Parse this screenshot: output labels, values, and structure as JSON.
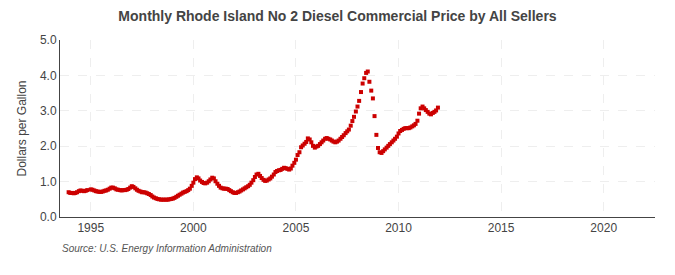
{
  "chart_data": {
    "type": "scatter",
    "title": "Monthly Rhode Island No 2 Diesel Commercial Price by All Sellers",
    "ylabel": "Dollars per Gallon",
    "annotations": [
      "Source: U.S. Energy Information Administration"
    ],
    "color": "#cc0000",
    "marker": "square",
    "grid": true,
    "xlim": [
      1993.5,
      2022.5
    ],
    "xticks": [
      1995,
      2000,
      2005,
      2010,
      2015,
      2020
    ],
    "ylim": [
      0.0,
      5.0
    ],
    "yticks": [
      {
        "value": 0.0,
        "label": "0.0"
      },
      {
        "value": 1.0,
        "label": "1.0"
      },
      {
        "value": 2.0,
        "label": "2.0"
      },
      {
        "value": 3.0,
        "label": "3.0"
      },
      {
        "value": 4.0,
        "label": "4.0"
      },
      {
        "value": 5.0,
        "label": "5.0"
      }
    ],
    "x": [
      1993.92,
      1994.0,
      1994.08,
      1994.17,
      1994.25,
      1994.33,
      1994.42,
      1994.5,
      1994.58,
      1994.67,
      1994.75,
      1994.83,
      1995.0,
      1995.08,
      1995.17,
      1995.25,
      1995.33,
      1995.42,
      1995.5,
      1995.58,
      1995.67,
      1995.75,
      1995.83,
      1995.92,
      1996.0,
      1996.08,
      1996.17,
      1996.25,
      1996.33,
      1996.42,
      1996.5,
      1996.58,
      1996.67,
      1996.75,
      1996.83,
      1996.92,
      1997.0,
      1997.08,
      1997.17,
      1997.25,
      1997.33,
      1997.42,
      1997.5,
      1997.58,
      1997.67,
      1997.75,
      1997.83,
      1997.92,
      1998.0,
      1998.08,
      1998.17,
      1998.25,
      1998.33,
      1998.42,
      1998.5,
      1998.58,
      1998.67,
      1998.75,
      1998.83,
      1998.92,
      1999.0,
      1999.08,
      1999.17,
      1999.25,
      1999.33,
      1999.42,
      1999.5,
      1999.58,
      1999.67,
      1999.75,
      1999.83,
      1999.92,
      2000.0,
      2000.08,
      2000.17,
      2000.25,
      2000.33,
      2000.42,
      2000.5,
      2000.58,
      2000.67,
      2000.75,
      2000.83,
      2000.92,
      2001.0,
      2001.08,
      2001.17,
      2001.25,
      2001.33,
      2001.42,
      2001.5,
      2001.58,
      2001.67,
      2001.75,
      2001.83,
      2001.92,
      2002.0,
      2002.08,
      2002.17,
      2002.25,
      2002.33,
      2002.42,
      2002.5,
      2002.58,
      2002.67,
      2002.75,
      2002.83,
      2002.92,
      2003.0,
      2003.08,
      2003.17,
      2003.25,
      2003.33,
      2003.42,
      2003.5,
      2003.58,
      2003.67,
      2003.75,
      2003.83,
      2003.92,
      2004.0,
      2004.08,
      2004.17,
      2004.25,
      2004.33,
      2004.42,
      2004.5,
      2004.58,
      2004.67,
      2004.75,
      2004.83,
      2004.92,
      2005.0,
      2005.08,
      2005.17,
      2005.25,
      2005.33,
      2005.42,
      2005.5,
      2005.58,
      2005.67,
      2005.75,
      2005.83,
      2005.92,
      2006.0,
      2006.08,
      2006.17,
      2006.25,
      2006.33,
      2006.42,
      2006.5,
      2006.58,
      2006.67,
      2006.75,
      2006.83,
      2006.92,
      2007.0,
      2007.08,
      2007.17,
      2007.25,
      2007.33,
      2007.42,
      2007.5,
      2007.58,
      2007.67,
      2007.75,
      2007.83,
      2007.92,
      2008.0,
      2008.08,
      2008.17,
      2008.25,
      2008.33,
      2008.42,
      2008.5,
      2008.58,
      2008.67,
      2008.75,
      2008.83,
      2008.92,
      2009.0,
      2009.08,
      2009.17,
      2009.25,
      2009.33,
      2009.42,
      2009.5,
      2009.58,
      2009.67,
      2009.75,
      2009.83,
      2009.92,
      2010.0,
      2010.08,
      2010.17,
      2010.25,
      2010.33,
      2010.42,
      2010.5,
      2010.58,
      2010.67,
      2010.75,
      2010.83,
      2010.92,
      2011.0,
      2011.08,
      2011.17,
      2011.25,
      2011.33,
      2011.42,
      2011.5,
      2011.58,
      2011.67,
      2011.75,
      2011.83,
      2011.92
    ],
    "values": [
      0.7,
      0.68,
      0.68,
      0.67,
      0.68,
      0.7,
      0.73,
      0.75,
      0.74,
      0.73,
      0.74,
      0.76,
      0.78,
      0.77,
      0.75,
      0.73,
      0.72,
      0.71,
      0.71,
      0.72,
      0.74,
      0.75,
      0.77,
      0.8,
      0.83,
      0.83,
      0.81,
      0.78,
      0.77,
      0.76,
      0.75,
      0.76,
      0.76,
      0.77,
      0.79,
      0.83,
      0.87,
      0.85,
      0.81,
      0.77,
      0.74,
      0.72,
      0.7,
      0.7,
      0.69,
      0.67,
      0.65,
      0.62,
      0.58,
      0.55,
      0.53,
      0.51,
      0.5,
      0.49,
      0.49,
      0.49,
      0.49,
      0.49,
      0.5,
      0.51,
      0.52,
      0.54,
      0.57,
      0.6,
      0.63,
      0.66,
      0.69,
      0.71,
      0.73,
      0.76,
      0.8,
      0.88,
      0.97,
      1.07,
      1.12,
      1.09,
      1.03,
      0.99,
      0.96,
      0.95,
      0.97,
      1.01,
      1.06,
      1.11,
      1.09,
      1.01,
      0.94,
      0.88,
      0.83,
      0.81,
      0.8,
      0.8,
      0.79,
      0.76,
      0.73,
      0.7,
      0.68,
      0.68,
      0.7,
      0.72,
      0.75,
      0.78,
      0.81,
      0.84,
      0.87,
      0.91,
      0.97,
      1.04,
      1.13,
      1.2,
      1.22,
      1.16,
      1.1,
      1.05,
      1.02,
      1.03,
      1.06,
      1.09,
      1.14,
      1.2,
      1.27,
      1.3,
      1.32,
      1.33,
      1.36,
      1.39,
      1.38,
      1.36,
      1.34,
      1.37,
      1.45,
      1.53,
      1.62,
      1.75,
      1.83,
      1.97,
      2.02,
      2.07,
      2.12,
      2.22,
      2.19,
      2.11,
      2.01,
      1.96,
      1.99,
      2.01,
      2.06,
      2.11,
      2.16,
      2.21,
      2.23,
      2.21,
      2.19,
      2.16,
      2.13,
      2.11,
      2.13,
      2.16,
      2.21,
      2.26,
      2.31,
      2.37,
      2.42,
      2.47,
      2.58,
      2.71,
      2.83,
      2.98,
      3.12,
      3.28,
      3.53,
      3.77,
      3.92,
      4.07,
      4.11,
      3.82,
      3.57,
      3.35,
      2.85,
      2.32,
      1.95,
      1.83,
      1.81,
      1.86,
      1.91,
      1.96,
      2.01,
      2.06,
      2.11,
      2.16,
      2.21,
      2.27,
      2.36,
      2.43,
      2.46,
      2.49,
      2.51,
      2.51,
      2.51,
      2.53,
      2.56,
      2.59,
      2.63,
      2.72,
      2.92,
      3.07,
      3.12,
      3.07,
      3.02,
      2.97,
      2.92,
      2.9,
      2.94,
      2.97,
      3.01,
      3.09
    ]
  }
}
